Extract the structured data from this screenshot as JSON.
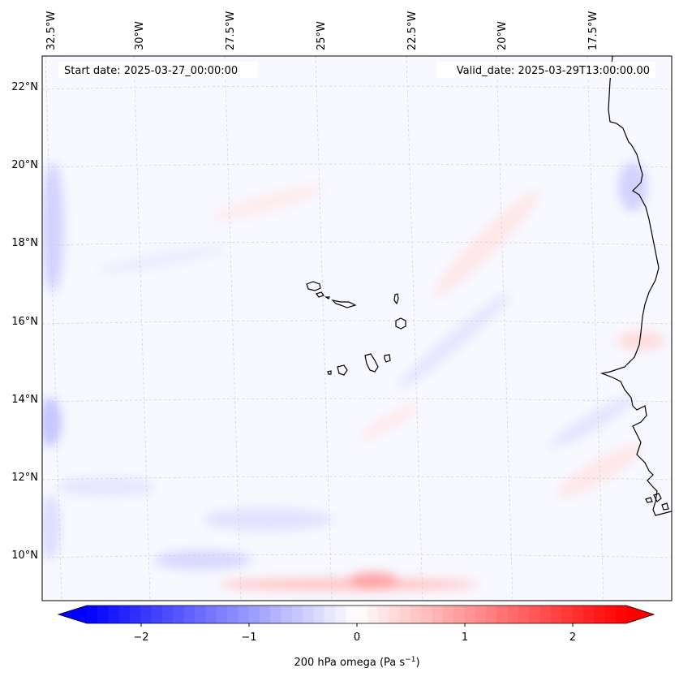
{
  "map": {
    "start_label": "Start date: 2025-03-27_00:00:00",
    "valid_label": "Valid_date: 2025-03-29T13:00:00.00",
    "lon_labels": [
      "32.5°W",
      "30°W",
      "27.5°W",
      "25°W",
      "22.5°W",
      "20°W",
      "17.5°W"
    ],
    "lat_labels": [
      "22°N",
      "20°N",
      "18°N",
      "16°N",
      "14°N",
      "12°N",
      "10°N"
    ],
    "extent": {
      "lon_min": -32.6,
      "lon_max": -15.5,
      "lat_min": 8.8,
      "lat_max": 22.8
    }
  },
  "colorbar": {
    "label": "200 hPa omega (Pa s",
    "label_sup": "−1",
    "label_close": ")",
    "ticks": [
      "−2",
      "−1",
      "0",
      "1",
      "2"
    ],
    "tick_values": [
      -2,
      -1,
      0,
      1,
      2
    ],
    "range": [
      -2.5,
      2.5
    ],
    "levels": 50,
    "colors": {
      "min": "#0000ff",
      "mid": "#ffffff",
      "max": "#ff0000"
    }
  },
  "colors": {
    "coastline": "#000000",
    "grid": "#c8c8c8"
  }
}
